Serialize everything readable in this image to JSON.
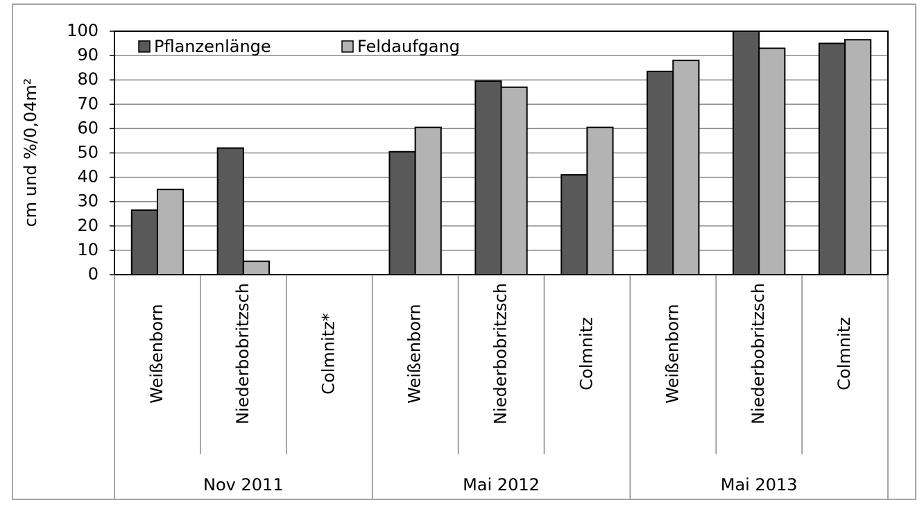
{
  "chart_data": {
    "type": "bar",
    "y_label": "cm und %/0,04m²",
    "groups": [
      {
        "name": "Nov 2011",
        "categories": [
          "Weißenborn",
          "Niederbobritzsch",
          "Colmnitz*"
        ]
      },
      {
        "name": "Mai 2012",
        "categories": [
          "Weißenborn",
          "Niederbobritzsch",
          "Colmnitz"
        ]
      },
      {
        "name": "Mai 2013",
        "categories": [
          "Weißenborn",
          "Niederbobritzsch",
          "Colmnitz"
        ]
      }
    ],
    "series": [
      {
        "name": "Pflanzenlänge",
        "color": "#595959",
        "values": [
          26.5,
          52,
          null,
          50.5,
          79.5,
          41,
          83.5,
          100,
          95
        ]
      },
      {
        "name": "Feldaufgang",
        "color": "#b3b3b3",
        "values": [
          35,
          5.5,
          null,
          60.5,
          77,
          60.5,
          88,
          93,
          96.5
        ]
      }
    ],
    "ylim": [
      0,
      100
    ],
    "yticks": [
      0,
      10,
      20,
      30,
      40,
      50,
      60,
      70,
      80,
      90,
      100
    ],
    "grid": true,
    "legend": "upper left"
  }
}
